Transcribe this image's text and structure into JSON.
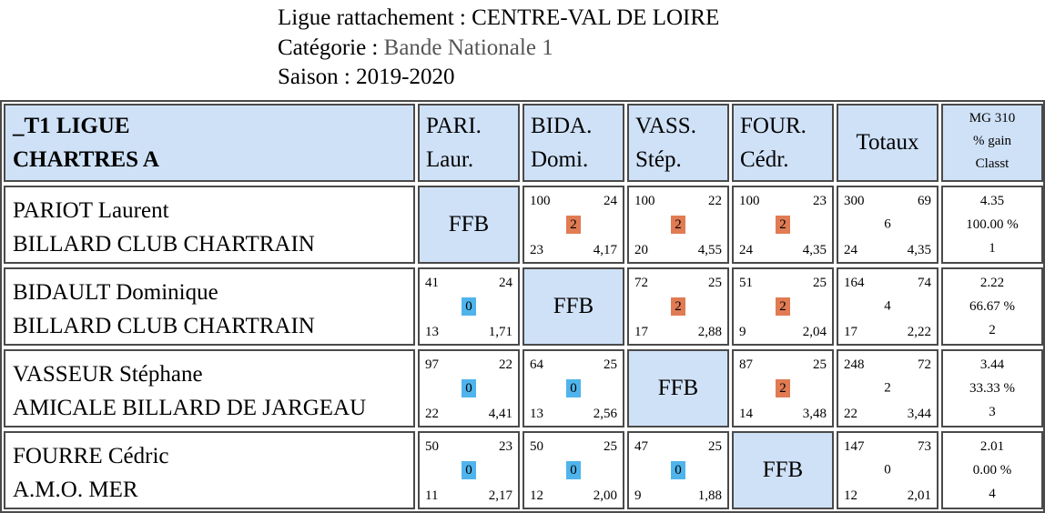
{
  "header": {
    "ligue_label": "Ligue rattachement :",
    "ligue_value": "CENTRE-VAL DE LOIRE",
    "categorie_label": "Catégorie :",
    "categorie_value": "Bande Nationale 1",
    "saison_label": "Saison :",
    "saison_value": "2019-2020"
  },
  "table": {
    "team_line1": "_T1 LIGUE",
    "team_line2": "CHARTRES A",
    "columns": [
      {
        "l1": "PARI.",
        "l2": "Laur."
      },
      {
        "l1": "BIDA.",
        "l2": "Domi."
      },
      {
        "l1": "VASS.",
        "l2": "Stép."
      },
      {
        "l1": "FOUR.",
        "l2": "Cédr."
      }
    ],
    "totaux_label": "Totaux",
    "mg_line1": "MG 310",
    "mg_line2": "% gain",
    "mg_line3": "Classt",
    "ffb_label": "FFB",
    "players": [
      {
        "name": "PARIOT Laurent",
        "club": "BILLARD CLUB CHARTRAIN",
        "matches": [
          null,
          {
            "points": "100",
            "reprises": "24",
            "serie": "23",
            "moyenne": "4,17",
            "score": "2",
            "result": "win"
          },
          {
            "points": "100",
            "reprises": "22",
            "serie": "20",
            "moyenne": "4,55",
            "score": "2",
            "result": "win"
          },
          {
            "points": "100",
            "reprises": "23",
            "serie": "24",
            "moyenne": "4,35",
            "score": "2",
            "result": "win"
          }
        ],
        "totals": {
          "points": "300",
          "reprises": "69",
          "match_pts": "6",
          "serie": "24",
          "moyenne": "4,35"
        },
        "stats": {
          "mg": "4.35",
          "pct": "100.00 %",
          "rank": "1"
        }
      },
      {
        "name": "BIDAULT Dominique",
        "club": "BILLARD CLUB CHARTRAIN",
        "matches": [
          {
            "points": "41",
            "reprises": "24",
            "serie": "13",
            "moyenne": "1,71",
            "score": "0",
            "result": "loss"
          },
          null,
          {
            "points": "72",
            "reprises": "25",
            "serie": "17",
            "moyenne": "2,88",
            "score": "2",
            "result": "win"
          },
          {
            "points": "51",
            "reprises": "25",
            "serie": "9",
            "moyenne": "2,04",
            "score": "2",
            "result": "win"
          }
        ],
        "totals": {
          "points": "164",
          "reprises": "74",
          "match_pts": "4",
          "serie": "17",
          "moyenne": "2,22"
        },
        "stats": {
          "mg": "2.22",
          "pct": "66.67 %",
          "rank": "2"
        }
      },
      {
        "name": "VASSEUR Stéphane",
        "club": "AMICALE BILLARD DE JARGEAU",
        "matches": [
          {
            "points": "97",
            "reprises": "22",
            "serie": "22",
            "moyenne": "4,41",
            "score": "0",
            "result": "loss"
          },
          {
            "points": "64",
            "reprises": "25",
            "serie": "13",
            "moyenne": "2,56",
            "score": "0",
            "result": "loss"
          },
          null,
          {
            "points": "87",
            "reprises": "25",
            "serie": "14",
            "moyenne": "3,48",
            "score": "2",
            "result": "win"
          }
        ],
        "totals": {
          "points": "248",
          "reprises": "72",
          "match_pts": "2",
          "serie": "22",
          "moyenne": "3,44"
        },
        "stats": {
          "mg": "3.44",
          "pct": "33.33 %",
          "rank": "3"
        }
      },
      {
        "name": "FOURRE Cédric",
        "club": "A.M.O. MER",
        "matches": [
          {
            "points": "50",
            "reprises": "23",
            "serie": "11",
            "moyenne": "2,17",
            "score": "0",
            "result": "loss"
          },
          {
            "points": "50",
            "reprises": "25",
            "serie": "12",
            "moyenne": "2,00",
            "score": "0",
            "result": "loss"
          },
          {
            "points": "47",
            "reprises": "25",
            "serie": "9",
            "moyenne": "1,88",
            "score": "0",
            "result": "loss"
          },
          null
        ],
        "totals": {
          "points": "147",
          "reprises": "73",
          "match_pts": "0",
          "serie": "12",
          "moyenne": "2,01"
        },
        "stats": {
          "mg": "2.01",
          "pct": "0.00 %",
          "rank": "4"
        }
      }
    ]
  },
  "colors": {
    "header_bg": "#cfe1f7",
    "win_badge": "#e07b53",
    "loss_badge": "#4fb4ec",
    "border": "#4a4a4a"
  }
}
